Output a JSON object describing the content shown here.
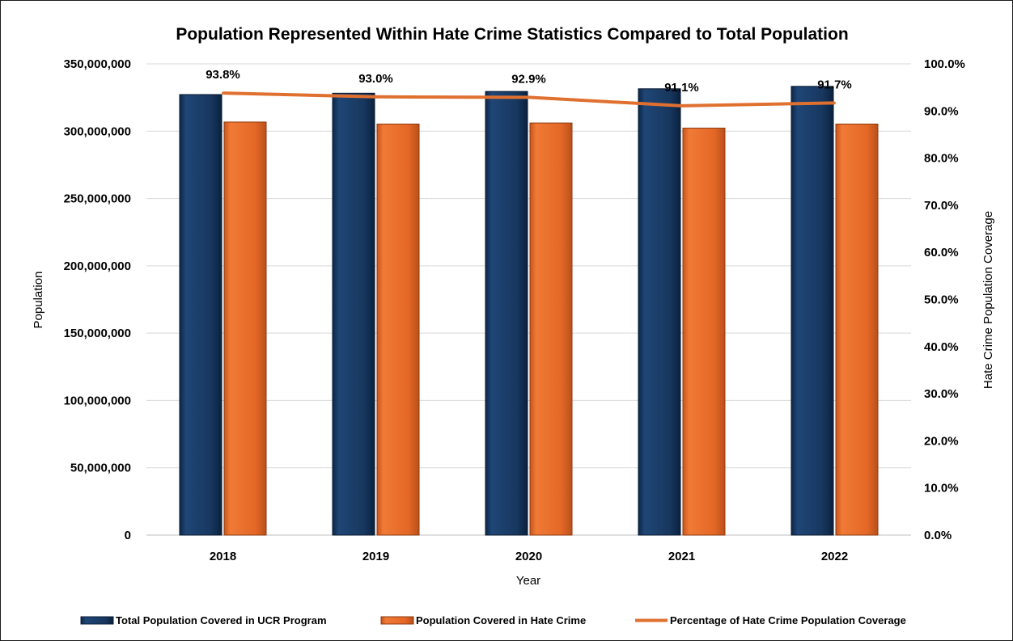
{
  "chart_data": {
    "type": "bar",
    "title": "Population Represented Within Hate Crime Statistics Compared to Total Population",
    "xlabel": "Year",
    "ylabel": "Population",
    "y2label": "Hate Crime Population Coverage",
    "categories": [
      "2018",
      "2019",
      "2020",
      "2021",
      "2022"
    ],
    "ylim": [
      0,
      350000000
    ],
    "y_ticks": [
      "0",
      "50,000,000",
      "100,000,000",
      "150,000,000",
      "200,000,000",
      "250,000,000",
      "300,000,000",
      "350,000,000"
    ],
    "y2lim": [
      0,
      100
    ],
    "y2_ticks": [
      "0.0%",
      "10.0%",
      "20.0%",
      "30.0%",
      "40.0%",
      "50.0%",
      "60.0%",
      "70.0%",
      "80.0%",
      "90.0%",
      "100.0%"
    ],
    "grid": "horizontal",
    "legend_position": "bottom",
    "series": [
      {
        "name": "Total Population Covered in UCR Program",
        "kind": "bar",
        "axis": "left",
        "color": "#17375e",
        "values": [
          327200000,
          328200000,
          329500000,
          331500000,
          333300000
        ]
      },
      {
        "name": "Population Covered in Hate Crime",
        "kind": "bar",
        "axis": "left",
        "color": "#e46726",
        "values": [
          306800000,
          305300000,
          306100000,
          302300000,
          305300000
        ]
      },
      {
        "name": "Percentage of Hate Crime Population Coverage",
        "kind": "line",
        "axis": "right",
        "color": "#e07030",
        "values": [
          93.8,
          93.0,
          92.9,
          91.1,
          91.7
        ],
        "labels": [
          "93.8%",
          "93.0%",
          "92.9%",
          "91.1%",
          "91.7%"
        ]
      }
    ]
  }
}
